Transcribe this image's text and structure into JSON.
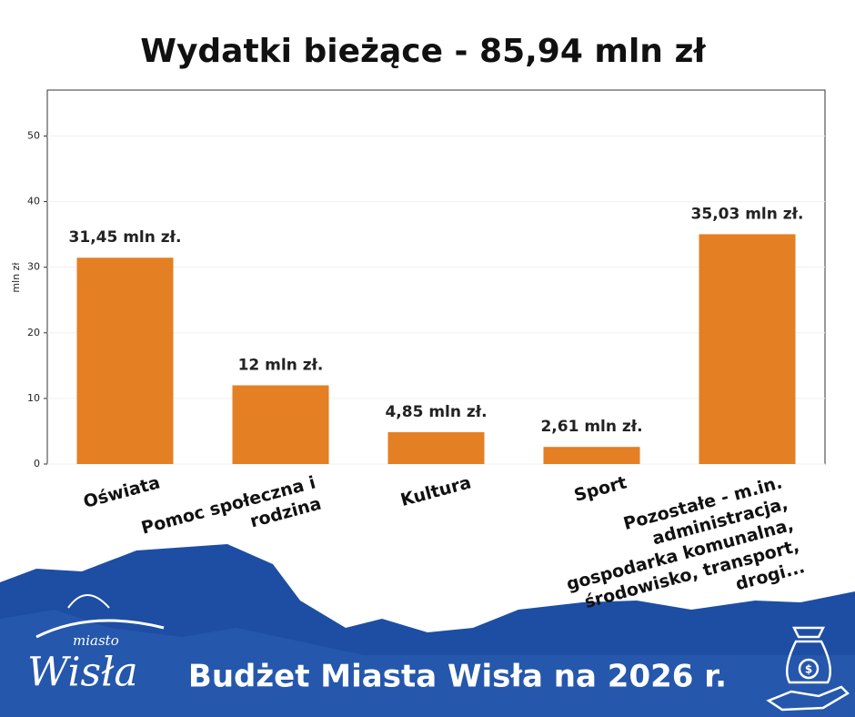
{
  "chart_data": {
    "type": "bar",
    "title": "Wydatki bieżące - 85,94 mln zł",
    "ylabel": "mln zł",
    "categories": [
      "Oświata",
      "Pomoc społeczna i\nrodzina",
      "Kultura",
      "Sport",
      "Pozostałe - m.in.\nadministracja,\ngospodarka komunalna,\nśrodowisko, transport,\ndrogi..."
    ],
    "values": [
      31.45,
      12,
      4.85,
      2.61,
      35.03
    ],
    "value_labels": [
      "31,45 mln zł.",
      "12 mln zł.",
      "4,85 mln zł.",
      "2,61 mln zł.",
      "35,03 mln zł."
    ],
    "color": "#e47f24",
    "ylim": [
      0,
      57
    ],
    "yticks": [
      0,
      10,
      20,
      30,
      40,
      50
    ],
    "grid": true
  },
  "footer": {
    "title": "Budżet Miasta Wisła na 2026 r.",
    "logo_small": "miasto",
    "logo_big": "Wisła"
  }
}
